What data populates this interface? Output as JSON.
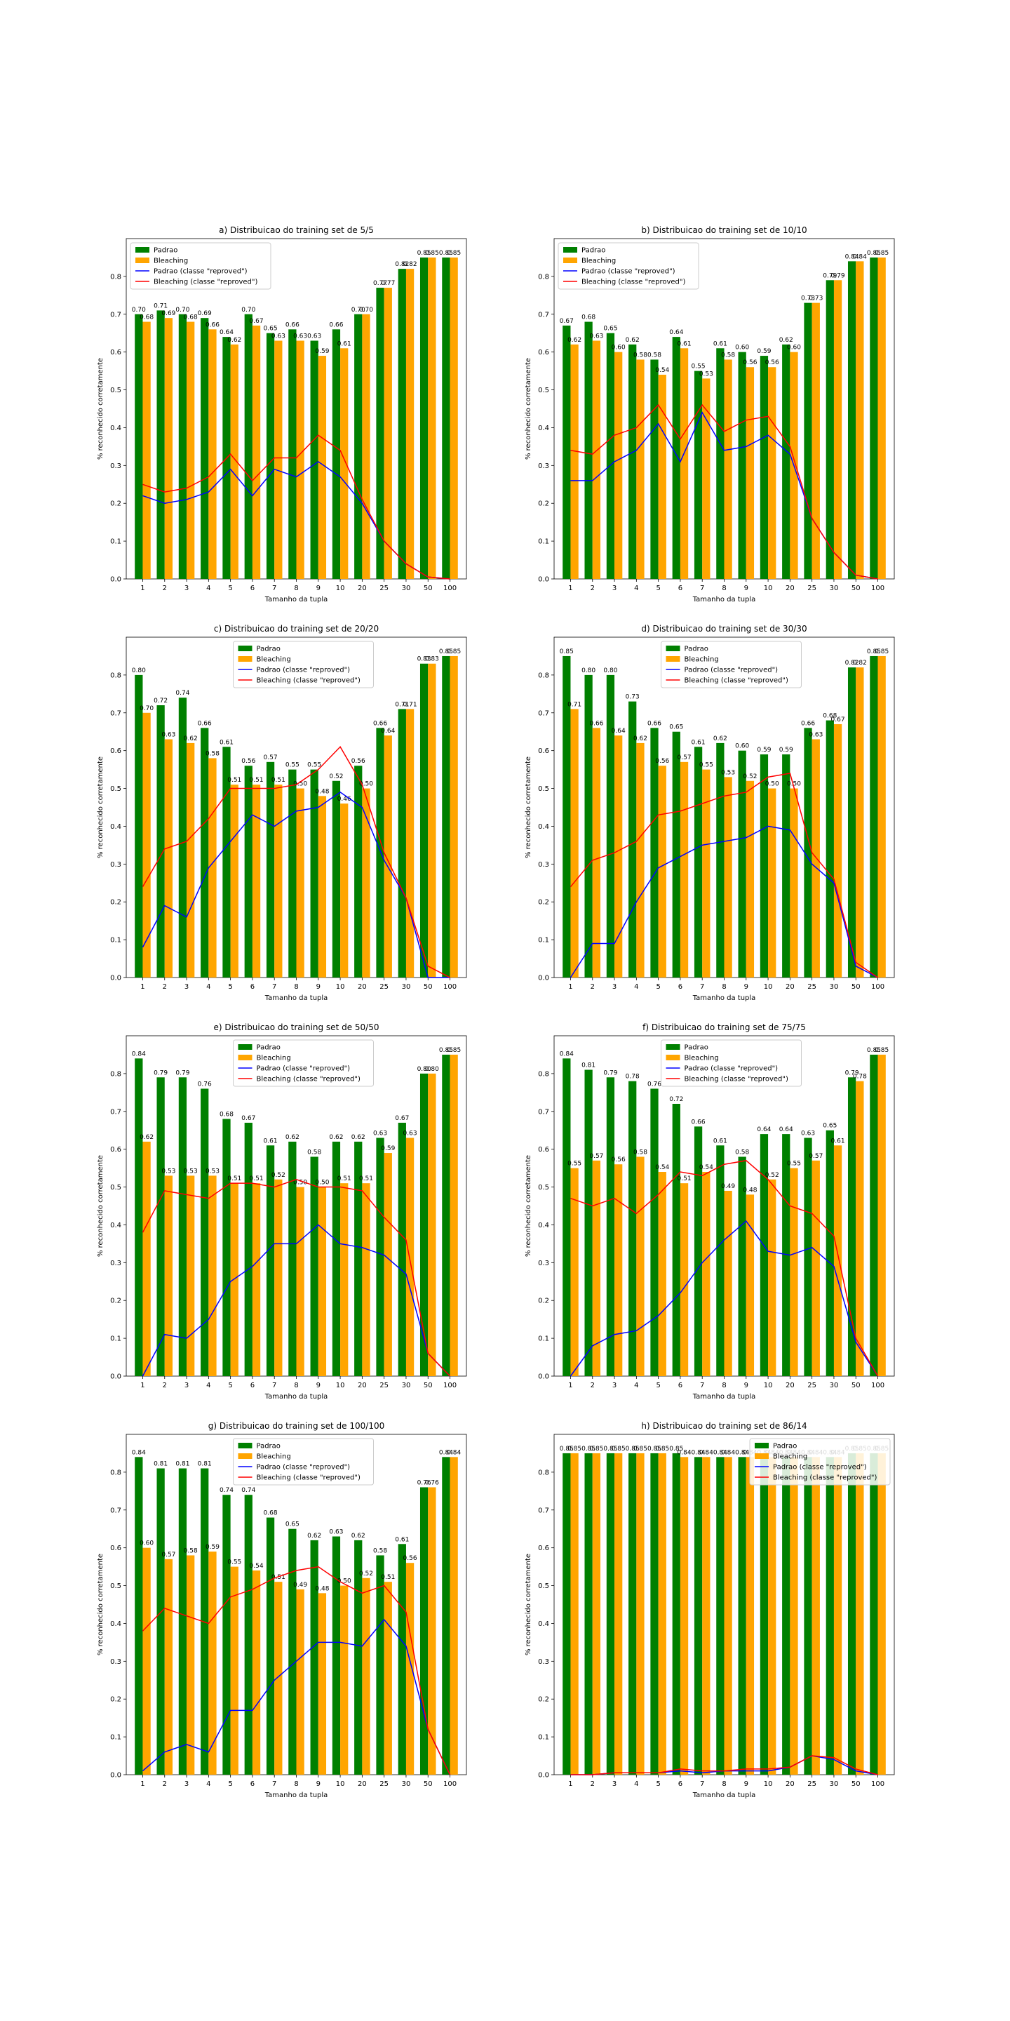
{
  "figure": {
    "x_categories": [
      "1",
      "2",
      "3",
      "4",
      "5",
      "6",
      "7",
      "8",
      "9",
      "10",
      "20",
      "25",
      "30",
      "50",
      "100"
    ],
    "xlabel": "Tamanho da tupla",
    "ylabel": "% reconhecido corretamente",
    "ylim": [
      0,
      0.9
    ],
    "yticks": [
      "0.0",
      "0.1",
      "0.2",
      "0.3",
      "0.4",
      "0.5",
      "0.6",
      "0.7",
      "0.8"
    ],
    "legend_labels": [
      "Padrao",
      "Bleaching",
      "Padrao (classe \"reproved\")",
      "Bleaching (classe \"reproved\")"
    ],
    "colors": {
      "padrao": "#008000",
      "bleaching": "#ffa500",
      "padrao_line": "#0000ff",
      "bleaching_line": "#ff0000"
    }
  },
  "chart_data": [
    {
      "type": "bar",
      "title": "a) Distribuicao do training set de 5/5",
      "legend_position": "upper left",
      "series": [
        {
          "name": "Padrao",
          "kind": "bar",
          "values": [
            0.7,
            0.71,
            0.7,
            0.69,
            0.64,
            0.7,
            0.65,
            0.66,
            0.63,
            0.66,
            0.7,
            0.77,
            0.82,
            0.85,
            0.85
          ],
          "labels": [
            "0.70",
            "0.71",
            "0.70",
            "0.69",
            "0.64",
            "0.70",
            "0.65",
            "0.66",
            "0.63",
            "0.66",
            "0.70",
            "0.77",
            "0.82",
            "0.85",
            "0.85"
          ]
        },
        {
          "name": "Bleaching",
          "kind": "bar",
          "values": [
            0.68,
            0.69,
            0.68,
            0.66,
            0.62,
            0.67,
            0.63,
            0.63,
            0.59,
            0.61,
            0.7,
            0.77,
            0.82,
            0.85,
            0.85
          ],
          "labels": [
            "0.68",
            "0.69",
            "0.68",
            "0.66",
            "0.62",
            "0.67",
            "0.63",
            "0.63",
            "0.59",
            "0.61",
            "0.70",
            "0.77",
            "0.82",
            "0.85",
            "0.85"
          ]
        },
        {
          "name": "Padrao (classe \"reproved\")",
          "kind": "line",
          "values": [
            0.22,
            0.2,
            0.21,
            0.23,
            0.29,
            0.22,
            0.29,
            0.27,
            0.31,
            0.27,
            0.2,
            0.1,
            0.04,
            0.005,
            0.0
          ]
        },
        {
          "name": "Bleaching (classe \"reproved\")",
          "kind": "line",
          "values": [
            0.25,
            0.23,
            0.24,
            0.27,
            0.33,
            0.26,
            0.32,
            0.32,
            0.38,
            0.34,
            0.21,
            0.1,
            0.04,
            0.005,
            0.0
          ]
        }
      ]
    },
    {
      "type": "bar",
      "title": "b) Distribuicao do training set de 10/10",
      "legend_position": "upper left",
      "series": [
        {
          "name": "Padrao",
          "kind": "bar",
          "values": [
            0.67,
            0.68,
            0.65,
            0.62,
            0.58,
            0.64,
            0.55,
            0.61,
            0.6,
            0.59,
            0.62,
            0.73,
            0.79,
            0.84,
            0.85
          ],
          "labels": [
            "0.67",
            "0.68",
            "0.65",
            "0.62",
            "0.58",
            "0.64",
            "0.55",
            "0.61",
            "0.60",
            "0.59",
            "0.62",
            "0.73",
            "0.79",
            "0.84",
            "0.85"
          ]
        },
        {
          "name": "Bleaching",
          "kind": "bar",
          "values": [
            0.62,
            0.63,
            0.6,
            0.58,
            0.54,
            0.61,
            0.53,
            0.58,
            0.56,
            0.56,
            0.6,
            0.73,
            0.79,
            0.84,
            0.85
          ],
          "labels": [
            "0.62",
            "0.63",
            "0.60",
            "0.58",
            "0.54",
            "0.61",
            "0.53",
            "0.58",
            "0.56",
            "0.56",
            "0.60",
            "0.73",
            "0.79",
            "0.84",
            "0.85"
          ]
        },
        {
          "name": "Padrao (classe \"reproved\")",
          "kind": "line",
          "values": [
            0.26,
            0.26,
            0.31,
            0.34,
            0.41,
            0.31,
            0.44,
            0.34,
            0.35,
            0.38,
            0.33,
            0.16,
            0.07,
            0.01,
            0.0
          ]
        },
        {
          "name": "Bleaching (classe \"reproved\")",
          "kind": "line",
          "values": [
            0.34,
            0.33,
            0.38,
            0.4,
            0.46,
            0.37,
            0.46,
            0.39,
            0.42,
            0.43,
            0.35,
            0.16,
            0.07,
            0.01,
            0.0
          ]
        }
      ]
    },
    {
      "type": "bar",
      "title": "c) Distribuicao do training set de 20/20",
      "legend_position": "upper center",
      "series": [
        {
          "name": "Padrao",
          "kind": "bar",
          "values": [
            0.8,
            0.72,
            0.74,
            0.66,
            0.61,
            0.56,
            0.57,
            0.55,
            0.55,
            0.52,
            0.56,
            0.66,
            0.71,
            0.83,
            0.85
          ],
          "labels": [
            "0.80",
            "0.72",
            "0.74",
            "0.66",
            "0.61",
            "0.56",
            "0.57",
            "0.55",
            "0.55",
            "0.52",
            "0.56",
            "0.66",
            "0.71",
            "0.83",
            "0.85"
          ]
        },
        {
          "name": "Bleaching",
          "kind": "bar",
          "values": [
            0.7,
            0.63,
            0.62,
            0.58,
            0.51,
            0.51,
            0.51,
            0.5,
            0.48,
            0.46,
            0.5,
            0.64,
            0.71,
            0.83,
            0.85
          ],
          "labels": [
            "0.70",
            "0.63",
            "0.62",
            "0.58",
            "0.51",
            "0.51",
            "0.51",
            "0.50",
            "0.48",
            "0.46",
            "0.50",
            "0.64",
            "0.71",
            "0.83",
            "0.85"
          ]
        },
        {
          "name": "Padrao (classe \"reproved\")",
          "kind": "line",
          "values": [
            0.08,
            0.19,
            0.16,
            0.29,
            0.36,
            0.43,
            0.4,
            0.44,
            0.45,
            0.49,
            0.45,
            0.31,
            0.21,
            0.0,
            0.0
          ]
        },
        {
          "name": "Bleaching (classe \"reproved\")",
          "kind": "line",
          "values": [
            0.24,
            0.34,
            0.36,
            0.42,
            0.5,
            0.5,
            0.5,
            0.51,
            0.55,
            0.61,
            0.51,
            0.33,
            0.21,
            0.03,
            0.0
          ]
        }
      ]
    },
    {
      "type": "bar",
      "title": "d) Distribuicao do training set de 30/30",
      "legend_position": "upper center",
      "series": [
        {
          "name": "Padrao",
          "kind": "bar",
          "values": [
            0.85,
            0.8,
            0.8,
            0.73,
            0.66,
            0.65,
            0.61,
            0.62,
            0.6,
            0.59,
            0.59,
            0.66,
            0.68,
            0.82,
            0.85
          ],
          "labels": [
            "0.85",
            "0.80",
            "0.80",
            "0.73",
            "0.66",
            "0.65",
            "0.61",
            "0.62",
            "0.60",
            "0.59",
            "0.59",
            "0.66",
            "0.68",
            "0.82",
            "0.85"
          ]
        },
        {
          "name": "Bleaching",
          "kind": "bar",
          "values": [
            0.71,
            0.66,
            0.64,
            0.62,
            0.56,
            0.57,
            0.55,
            0.53,
            0.52,
            0.5,
            0.5,
            0.63,
            0.67,
            0.82,
            0.85
          ],
          "labels": [
            "0.71",
            "0.66",
            "0.64",
            "0.62",
            "0.56",
            "0.57",
            "0.55",
            "0.53",
            "0.52",
            "0.50",
            "0.50",
            "0.63",
            "0.67",
            "0.82",
            "0.85"
          ]
        },
        {
          "name": "Padrao (classe \"reproved\")",
          "kind": "line",
          "values": [
            0.0,
            0.09,
            0.09,
            0.2,
            0.29,
            0.32,
            0.35,
            0.36,
            0.37,
            0.4,
            0.39,
            0.3,
            0.25,
            0.03,
            0.0
          ]
        },
        {
          "name": "Bleaching (classe \"reproved\")",
          "kind": "line",
          "values": [
            0.24,
            0.31,
            0.33,
            0.36,
            0.43,
            0.44,
            0.46,
            0.48,
            0.49,
            0.53,
            0.54,
            0.33,
            0.26,
            0.04,
            0.0
          ]
        }
      ]
    },
    {
      "type": "bar",
      "title": "e) Distribuicao do training set de 50/50",
      "legend_position": "upper center",
      "series": [
        {
          "name": "Padrao",
          "kind": "bar",
          "values": [
            0.84,
            0.79,
            0.79,
            0.76,
            0.68,
            0.67,
            0.61,
            0.62,
            0.58,
            0.62,
            0.62,
            0.63,
            0.67,
            0.8,
            0.85
          ],
          "labels": [
            "0.84",
            "0.79",
            "0.79",
            "0.76",
            "0.68",
            "0.67",
            "0.61",
            "0.62",
            "0.58",
            "0.62",
            "0.62",
            "0.63",
            "0.67",
            "0.80",
            "0.85"
          ]
        },
        {
          "name": "Bleaching",
          "kind": "bar",
          "values": [
            0.62,
            0.53,
            0.53,
            0.53,
            0.51,
            0.51,
            0.52,
            0.5,
            0.5,
            0.51,
            0.51,
            0.59,
            0.63,
            0.8,
            0.85
          ],
          "labels": [
            "0.62",
            "0.53",
            "0.53",
            "0.53",
            "0.51",
            "0.51",
            "0.52",
            "0.50",
            "0.50",
            "0.51",
            "0.51",
            "0.59",
            "0.63",
            "0.80",
            "0.85"
          ]
        },
        {
          "name": "Padrao (classe \"reproved\")",
          "kind": "line",
          "values": [
            0.0,
            0.11,
            0.1,
            0.15,
            0.25,
            0.29,
            0.35,
            0.35,
            0.4,
            0.35,
            0.34,
            0.32,
            0.27,
            0.06,
            0.0
          ]
        },
        {
          "name": "Bleaching (classe \"reproved\")",
          "kind": "line",
          "values": [
            0.38,
            0.49,
            0.48,
            0.47,
            0.51,
            0.51,
            0.5,
            0.52,
            0.5,
            0.5,
            0.49,
            0.42,
            0.36,
            0.06,
            0.0
          ]
        }
      ]
    },
    {
      "type": "bar",
      "title": "f) Distribuicao do training set de 75/75",
      "legend_position": "upper center",
      "series": [
        {
          "name": "Padrao",
          "kind": "bar",
          "values": [
            0.84,
            0.81,
            0.79,
            0.78,
            0.76,
            0.72,
            0.66,
            0.61,
            0.58,
            0.64,
            0.64,
            0.63,
            0.65,
            0.79,
            0.85
          ],
          "labels": [
            "0.84",
            "0.81",
            "0.79",
            "0.78",
            "0.76",
            "0.72",
            "0.66",
            "0.61",
            "0.58",
            "0.64",
            "0.64",
            "0.63",
            "0.65",
            "0.79",
            "0.85"
          ]
        },
        {
          "name": "Bleaching",
          "kind": "bar",
          "values": [
            0.55,
            0.57,
            0.56,
            0.58,
            0.54,
            0.51,
            0.54,
            0.49,
            0.48,
            0.52,
            0.55,
            0.57,
            0.61,
            0.78,
            0.85
          ],
          "labels": [
            "0.55",
            "0.57",
            "0.56",
            "0.58",
            "0.54",
            "0.51",
            "0.54",
            "0.49",
            "0.48",
            "0.52",
            "0.55",
            "0.57",
            "0.61",
            "0.78",
            "0.85"
          ]
        },
        {
          "name": "Padrao (classe \"reproved\")",
          "kind": "line",
          "values": [
            0.0,
            0.08,
            0.11,
            0.12,
            0.16,
            0.22,
            0.3,
            0.36,
            0.41,
            0.33,
            0.32,
            0.34,
            0.29,
            0.09,
            0.0
          ]
        },
        {
          "name": "Bleaching (classe \"reproved\")",
          "kind": "line",
          "values": [
            0.47,
            0.45,
            0.47,
            0.43,
            0.48,
            0.54,
            0.53,
            0.56,
            0.57,
            0.52,
            0.45,
            0.43,
            0.37,
            0.1,
            0.0
          ]
        }
      ]
    },
    {
      "type": "bar",
      "title": "g) Distribuicao do training set de 100/100",
      "legend_position": "upper center",
      "series": [
        {
          "name": "Padrao",
          "kind": "bar",
          "values": [
            0.84,
            0.81,
            0.81,
            0.81,
            0.74,
            0.74,
            0.68,
            0.65,
            0.62,
            0.63,
            0.62,
            0.58,
            0.61,
            0.76,
            0.84
          ],
          "labels": [
            "0.84",
            "0.81",
            "0.81",
            "0.81",
            "0.74",
            "0.74",
            "0.68",
            "0.65",
            "0.62",
            "0.63",
            "0.62",
            "0.58",
            "0.61",
            "0.76",
            "0.84"
          ]
        },
        {
          "name": "Bleaching",
          "kind": "bar",
          "values": [
            0.6,
            0.57,
            0.58,
            0.59,
            0.55,
            0.54,
            0.51,
            0.49,
            0.48,
            0.5,
            0.52,
            0.51,
            0.56,
            0.76,
            0.84
          ],
          "labels": [
            "0.60",
            "0.57",
            "0.58",
            "0.59",
            "0.55",
            "0.54",
            "0.51",
            "0.49",
            "0.48",
            "0.50",
            "0.52",
            "0.51",
            "0.56",
            "0.76",
            "0.84"
          ]
        },
        {
          "name": "Padrao (classe \"reproved\")",
          "kind": "line",
          "values": [
            0.01,
            0.06,
            0.08,
            0.06,
            0.17,
            0.17,
            0.25,
            0.3,
            0.35,
            0.35,
            0.34,
            0.41,
            0.34,
            0.12,
            0.0
          ]
        },
        {
          "name": "Bleaching (classe \"reproved\")",
          "kind": "line",
          "values": [
            0.38,
            0.44,
            0.42,
            0.4,
            0.47,
            0.49,
            0.52,
            0.54,
            0.55,
            0.51,
            0.48,
            0.5,
            0.43,
            0.12,
            0.0
          ]
        }
      ]
    },
    {
      "type": "bar",
      "title": "h) Distribuicao do training set de 86/14",
      "legend_position": "upper right",
      "series": [
        {
          "name": "Padrao",
          "kind": "bar",
          "values": [
            0.85,
            0.85,
            0.85,
            0.85,
            0.85,
            0.85,
            0.84,
            0.84,
            0.84,
            0.84,
            0.84,
            0.84,
            0.84,
            0.85,
            0.85
          ],
          "labels": [
            "0.85",
            "0.85",
            "0.85",
            "0.85",
            "0.85",
            "0.85",
            "0.84",
            "0.84",
            "0.84",
            "0.84",
            "0.84",
            "0.84",
            "0.84",
            "0.85",
            "0.85"
          ]
        },
        {
          "name": "Bleaching",
          "kind": "bar",
          "values": [
            0.85,
            0.85,
            0.85,
            0.85,
            0.85,
            0.84,
            0.84,
            0.84,
            0.84,
            0.84,
            0.84,
            0.84,
            0.84,
            0.85,
            0.85
          ],
          "labels": [
            "0.85",
            "0.85",
            "0.85",
            "0.85",
            "0.85",
            "0.84",
            "0.84",
            "0.84",
            "0.84",
            "0.84",
            "0.84",
            "0.84",
            "0.84",
            "0.85",
            "0.85"
          ]
        },
        {
          "name": "Padrao (classe \"reproved\")",
          "kind": "line",
          "values": [
            0.0,
            0.0,
            0.005,
            0.005,
            0.005,
            0.01,
            0.005,
            0.01,
            0.01,
            0.01,
            0.02,
            0.05,
            0.04,
            0.01,
            0.0
          ]
        },
        {
          "name": "Bleaching (classe \"reproved\")",
          "kind": "line",
          "values": [
            0.0,
            0.0,
            0.005,
            0.005,
            0.005,
            0.015,
            0.01,
            0.01,
            0.015,
            0.015,
            0.02,
            0.05,
            0.045,
            0.015,
            0.0
          ]
        }
      ]
    }
  ]
}
